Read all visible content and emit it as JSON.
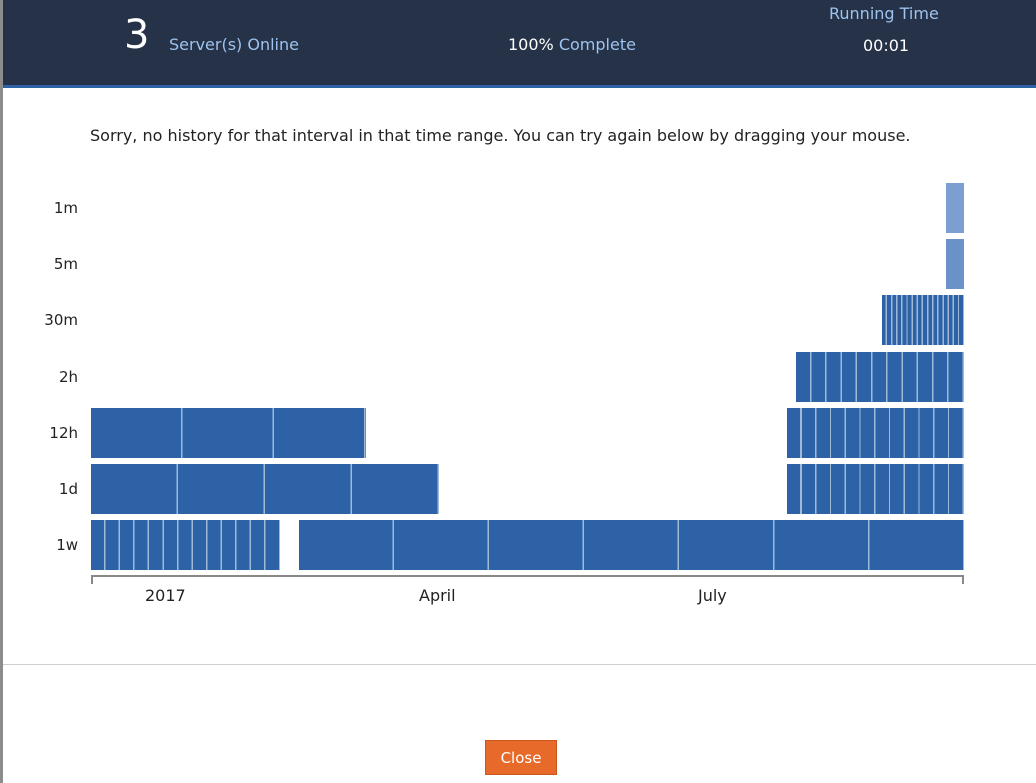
{
  "header": {
    "server_count": "3",
    "server_label": "Server(s) Online",
    "complete_percent": "100%",
    "complete_label": "Complete",
    "running_time_label": "Running Time",
    "running_time_value": "00:01"
  },
  "message": "Sorry, no history for that interval in that time range. You can try again below by dragging your mouse.",
  "chart_data": {
    "type": "timeline",
    "x_tick_labels": [
      "2017",
      "April",
      "July"
    ],
    "rows": [
      {
        "label": "1m",
        "color": "#7a9fd0",
        "segments": [
          {
            "start": "2017-09-24",
            "end": "2017-09-30"
          }
        ]
      },
      {
        "label": "5m",
        "color": "#6a92c9",
        "segments": [
          {
            "start": "2017-09-24",
            "end": "2017-09-30"
          }
        ]
      },
      {
        "label": "30m",
        "color": "#2d63a6",
        "segments": [
          {
            "start": "2017-09-03",
            "end": "2017-09-30"
          }
        ]
      },
      {
        "label": "2h",
        "color": "#2d63a6",
        "segments": [
          {
            "start": "2017-08-06",
            "end": "2017-09-30"
          }
        ]
      },
      {
        "label": "12h",
        "color": "#2d63a6",
        "segments": [
          {
            "start": "2016-12-18",
            "end": "2017-03-18"
          },
          {
            "start": "2017-08-03",
            "end": "2017-09-30"
          }
        ]
      },
      {
        "label": "1d",
        "color": "#2d63a6",
        "segments": [
          {
            "start": "2016-12-18",
            "end": "2017-04-11"
          },
          {
            "start": "2017-08-03",
            "end": "2017-09-30"
          }
        ]
      },
      {
        "label": "1w",
        "color": "#2d63a6",
        "segments": [
          {
            "start": "2016-12-18",
            "end": "2017-02-18"
          },
          {
            "start": "2017-02-24",
            "end": "2017-09-30"
          }
        ]
      }
    ]
  },
  "footer": {
    "close_label": "Close"
  }
}
